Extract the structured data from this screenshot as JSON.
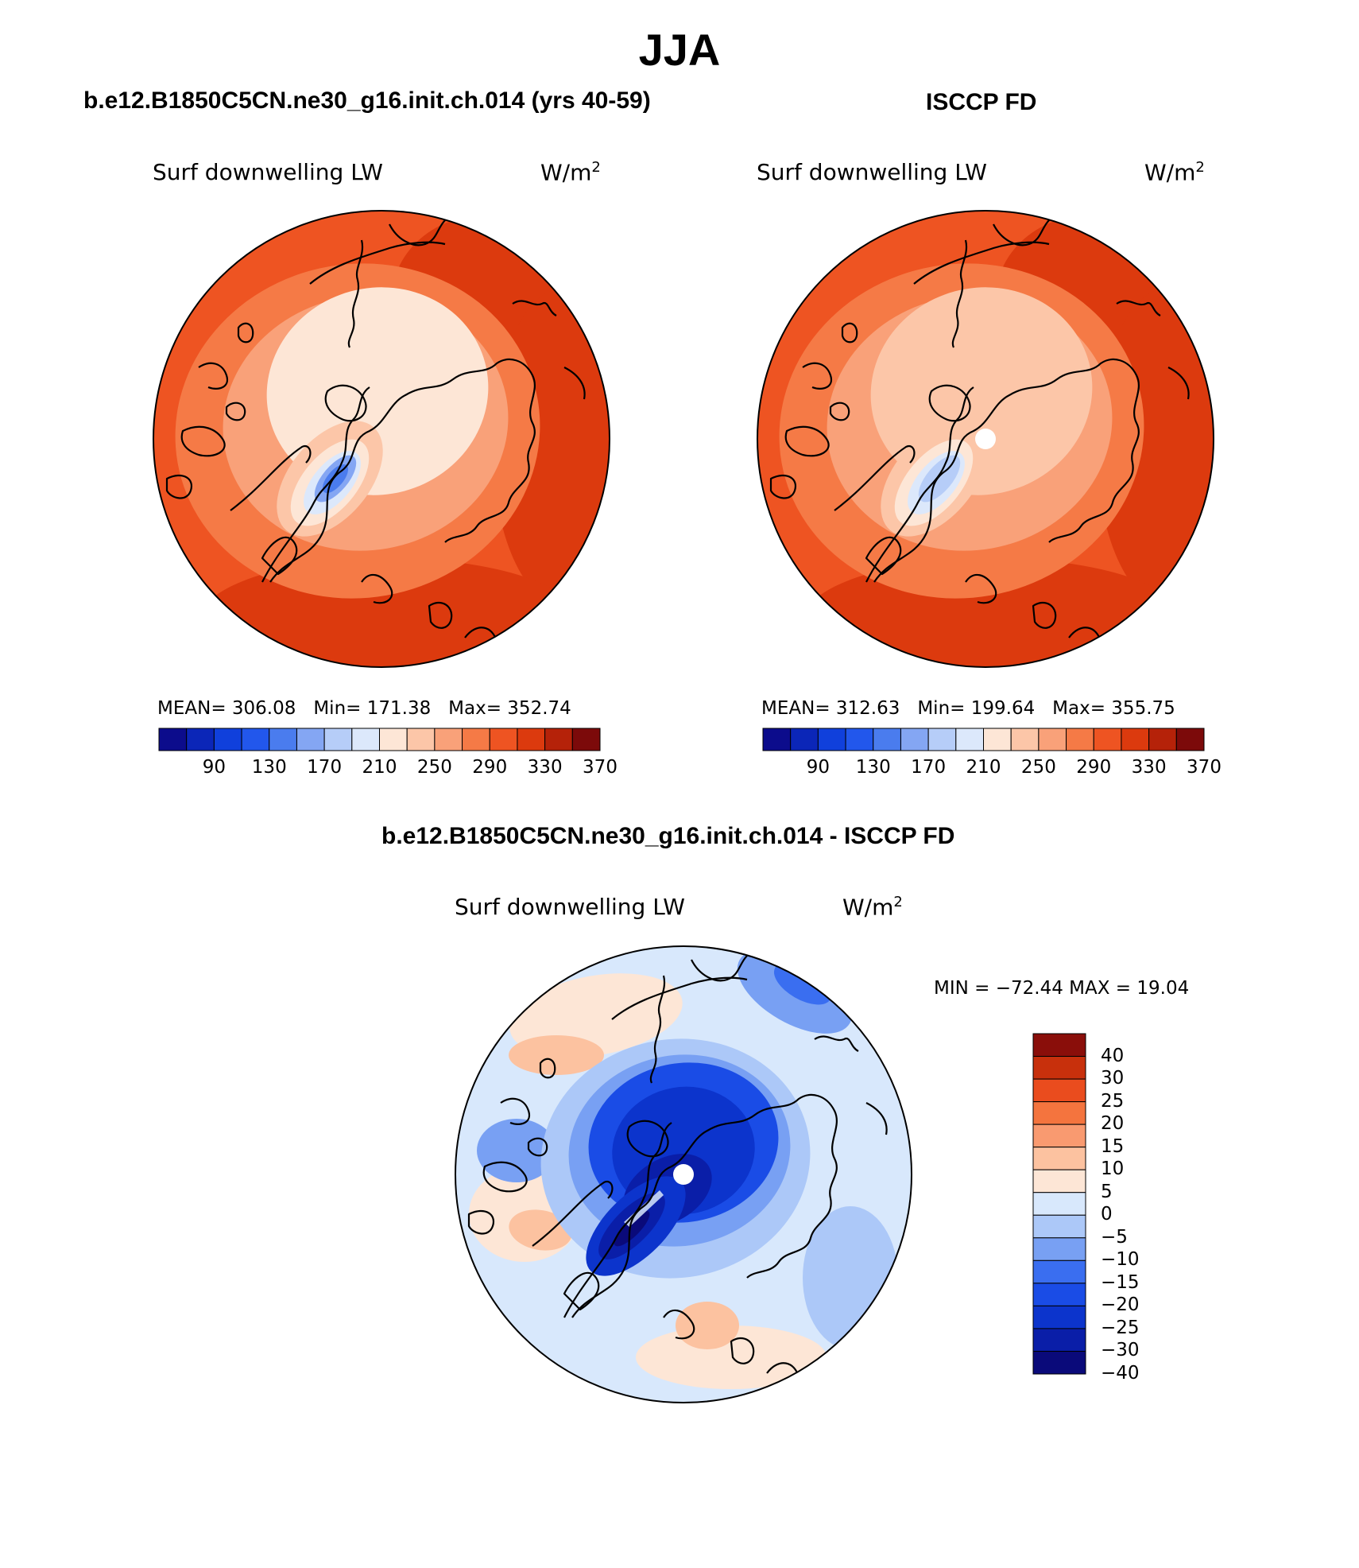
{
  "figure": {
    "title": "JJA"
  },
  "panels": [
    {
      "id": "model",
      "heading": "b.e12.B1850C5CN.ne30_g16.init.ch.014 (yrs 40-59)",
      "left_label": "Surf downwelling LW",
      "right_label": "W/m",
      "right_label_sup": "2",
      "stats": {
        "mean_label": "MEAN=",
        "mean": "306.08",
        "min_label": "Min=",
        "min": "171.38",
        "max_label": "Max=",
        "max": "352.74"
      },
      "colorbar_ticks": [
        "90",
        "130",
        "170",
        "210",
        "250",
        "290",
        "330",
        "370"
      ]
    },
    {
      "id": "obs",
      "heading": "ISCCP FD",
      "left_label": "Surf downwelling LW",
      "right_label": "W/m",
      "right_label_sup": "2",
      "stats": {
        "mean_label": "MEAN=",
        "mean": "312.63",
        "min_label": "Min=",
        "min": "199.64",
        "max_label": "Max=",
        "max": "355.75"
      },
      "colorbar_ticks": [
        "90",
        "130",
        "170",
        "210",
        "250",
        "290",
        "330",
        "370"
      ]
    },
    {
      "id": "diff",
      "heading": "b.e12.B1850C5CN.ne30_g16.init.ch.014 - ISCCP FD",
      "left_label": "Surf downwelling LW",
      "right_label": "W/m",
      "right_label_sup": "2",
      "minmax": "MIN = −72.44 MAX =  19.04",
      "colorbar_ticks": [
        "40",
        "30",
        "25",
        "20",
        "15",
        "10",
        "5",
        "0",
        "−5",
        "−10",
        "−15",
        "−20",
        "−25",
        "−30",
        "−40"
      ]
    }
  ],
  "colors": {
    "abs_scale": [
      "#0c0c8c",
      "#0b26b8",
      "#1040dc",
      "#2257ec",
      "#4a7cee",
      "#84a6f3",
      "#b6cdf8",
      "#dce8fb",
      "#fde6d6",
      "#fcc6a8",
      "#f9a179",
      "#f57a46",
      "#ee5422",
      "#dc3a0e",
      "#b52209",
      "#7c0a0a"
    ],
    "diff_scale": [
      "#0a0a7a",
      "#0a1ea8",
      "#0c34cc",
      "#1a4ce6",
      "#3a6ef0",
      "#78a0f3",
      "#acc8f8",
      "#d8e8fc",
      "#fde6d6",
      "#fcc2a0",
      "#f99a70",
      "#f4743e",
      "#ea4c1e",
      "#c8300c",
      "#8a0e0a"
    ]
  }
}
